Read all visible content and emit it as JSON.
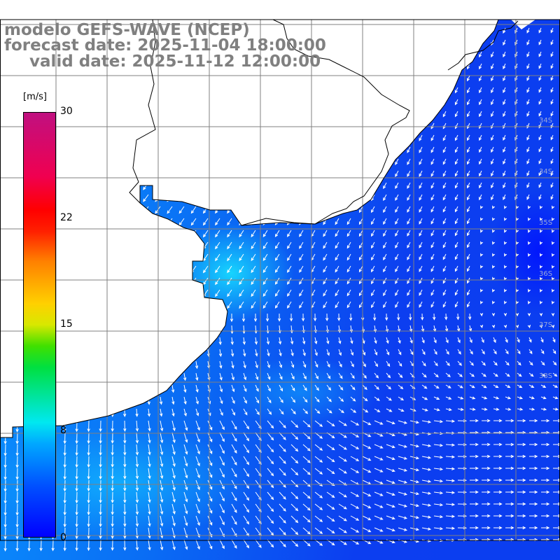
{
  "title": {
    "line1": "modelo GEFS-WAVE (NCEP)",
    "line2": "forecast date: 2025-11-04 18:00:00",
    "line3": "valid date: 2025-11-12 12:00:00"
  },
  "colorbar": {
    "unit": "[m/s]",
    "ticks": [
      "30",
      "22",
      "15",
      "8",
      "0"
    ],
    "min": 0,
    "max": 30
  },
  "lat_labels": [
    "34S",
    "34S",
    "35S",
    "36S",
    "37S",
    "38S"
  ],
  "colors": {
    "land": "#ffffff",
    "grid": "#808080",
    "coast": "#000000",
    "arrow": "#ffffff"
  }
}
